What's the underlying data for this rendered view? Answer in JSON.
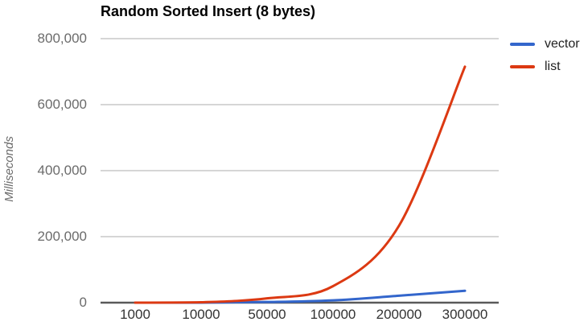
{
  "chart_data": {
    "type": "line",
    "title": "Random Sorted Insert (8 bytes)",
    "ylabel": "Milliseconds",
    "xlabel": "",
    "categories": [
      "1000",
      "10000",
      "50000",
      "100000",
      "200000",
      "300000"
    ],
    "series": [
      {
        "name": "vector",
        "color": "#3366CC",
        "values": [
          5,
          150,
          2000,
          7000,
          21000,
          36000
        ]
      },
      {
        "name": "list",
        "color": "#DC3912",
        "values": [
          15,
          1200,
          13000,
          50000,
          233000,
          715000
        ]
      }
    ],
    "ylim": [
      0,
      800000
    ],
    "y_ticks": [
      {
        "value": 0,
        "label": "0"
      },
      {
        "value": 200000,
        "label": "200,000"
      },
      {
        "value": 400000,
        "label": "400,000"
      },
      {
        "value": 600000,
        "label": "600,000"
      },
      {
        "value": 800000,
        "label": "800,000"
      }
    ],
    "grid": true,
    "legend_position": "right",
    "curve": "smooth"
  },
  "colors": {
    "background": "#ffffff",
    "grid": "#d0d0d0",
    "baseline": "#5a5a5a",
    "y_tick_text": "#6b6b6b",
    "x_tick_text": "#333333",
    "legend_text": "#222222",
    "title_text": "#000000"
  }
}
